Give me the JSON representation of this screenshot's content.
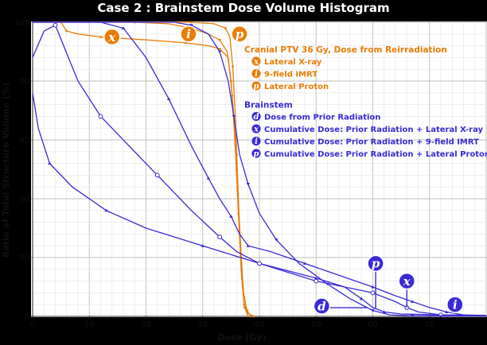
{
  "chart_data": {
    "type": "line",
    "title": "Case 2 : Brainstem Dose Volume Histogram",
    "xlabel": "Dose (Gy)",
    "ylabel": "Ratio of Total Structure Volume (%)",
    "xlim": [
      0,
      80
    ],
    "ylim": [
      0,
      100
    ],
    "xticks": [
      "0",
      "10",
      "20",
      "30",
      "40",
      "50",
      "60",
      "70"
    ],
    "yticks": [
      "0",
      "20",
      "40",
      "60",
      "80",
      "100"
    ],
    "grid": true,
    "legend": {
      "placement": "top-right",
      "groups": [
        {
          "heading": "Cranial PTV 36 Gy, Dose from Reirradiation",
          "color": "#e87d07",
          "items": [
            {
              "badge": "x",
              "label": "Lateral X-ray"
            },
            {
              "badge": "i",
              "label": "9-field IMRT"
            },
            {
              "badge": "p",
              "label": "Lateral Proton"
            }
          ]
        },
        {
          "heading": "Brainstem",
          "color": "#3a2ad6",
          "items": [
            {
              "badge": "d",
              "label": "Dose from Prior Radiation"
            },
            {
              "badge": "x",
              "label": "Cumulative Dose: Prior Radiation + Lateral X-ray"
            },
            {
              "badge": "i",
              "label": "Cumulative Dose: Prior Radiation + 9-field IMRT"
            },
            {
              "badge": "p",
              "label": "Cumulative Dose: Prior Radiation + Lateral Proton"
            }
          ]
        }
      ]
    },
    "series": [
      {
        "group": "ptv",
        "badge": "x",
        "color": "#e87d07",
        "points": [
          [
            5,
            100
          ],
          [
            6,
            97
          ],
          [
            8,
            96
          ],
          [
            12,
            95
          ],
          [
            20,
            94
          ],
          [
            27,
            93
          ],
          [
            31,
            92
          ],
          [
            33,
            91
          ],
          [
            34.5,
            88
          ],
          [
            35.2,
            75
          ],
          [
            35.8,
            55
          ],
          [
            36.3,
            35
          ],
          [
            36.8,
            15
          ],
          [
            37.3,
            4
          ],
          [
            38,
            1
          ],
          [
            39,
            0
          ]
        ]
      },
      {
        "group": "ptv",
        "badge": "i",
        "color": "#e87d07",
        "points": [
          [
            0,
            100
          ],
          [
            18,
            100
          ],
          [
            24,
            99.5
          ],
          [
            28,
            98
          ],
          [
            31,
            96
          ],
          [
            33,
            94
          ],
          [
            34.3,
            90
          ],
          [
            35,
            80
          ],
          [
            35.6,
            65
          ],
          [
            36,
            50
          ],
          [
            36.4,
            35
          ],
          [
            36.8,
            20
          ],
          [
            37.2,
            8
          ],
          [
            37.8,
            2
          ],
          [
            38.5,
            0
          ]
        ]
      },
      {
        "group": "ptv",
        "badge": "p",
        "color": "#e87d07",
        "points": [
          [
            0,
            100
          ],
          [
            28,
            100
          ],
          [
            32,
            99.5
          ],
          [
            34,
            98
          ],
          [
            34.8,
            95
          ],
          [
            35.3,
            85
          ],
          [
            35.7,
            70
          ],
          [
            36,
            55
          ],
          [
            36.3,
            40
          ],
          [
            36.6,
            25
          ],
          [
            37,
            10
          ],
          [
            37.4,
            3
          ],
          [
            38,
            0
          ]
        ]
      },
      {
        "group": "brainstem",
        "badge": "d",
        "color": "#3a2ad6",
        "points": [
          [
            0,
            76
          ],
          [
            1,
            64
          ],
          [
            3,
            52
          ],
          [
            7,
            44
          ],
          [
            13,
            36
          ],
          [
            20,
            30
          ],
          [
            30,
            24
          ],
          [
            40,
            18
          ],
          [
            50,
            13
          ],
          [
            55,
            10
          ],
          [
            58,
            6
          ],
          [
            60,
            3
          ],
          [
            62,
            1.5
          ],
          [
            65,
            0.8
          ],
          [
            72,
            0.5
          ],
          [
            80,
            0.3
          ]
        ]
      },
      {
        "group": "brainstem",
        "badge": "x",
        "color": "#3a2ad6",
        "points": [
          [
            0,
            88
          ],
          [
            2,
            97
          ],
          [
            4,
            99
          ],
          [
            8,
            80
          ],
          [
            12,
            68
          ],
          [
            17,
            58
          ],
          [
            22,
            48
          ],
          [
            28,
            36
          ],
          [
            33,
            27
          ],
          [
            36,
            22
          ],
          [
            40,
            18
          ],
          [
            45,
            15
          ],
          [
            50,
            12
          ],
          [
            55,
            10
          ],
          [
            60,
            8
          ],
          [
            64,
            5
          ],
          [
            66,
            3
          ],
          [
            68,
            1.5
          ],
          [
            72,
            0.5
          ],
          [
            80,
            0.3
          ]
        ]
      },
      {
        "group": "brainstem",
        "badge": "i",
        "color": "#3a2ad6",
        "points": [
          [
            0,
            100
          ],
          [
            12,
            100
          ],
          [
            16,
            98
          ],
          [
            20,
            88
          ],
          [
            24,
            74
          ],
          [
            28,
            58
          ],
          [
            31,
            47
          ],
          [
            33,
            40
          ],
          [
            35,
            34
          ],
          [
            36.5,
            28
          ],
          [
            38,
            24
          ],
          [
            42,
            22
          ],
          [
            48,
            18
          ],
          [
            54,
            14
          ],
          [
            60,
            10
          ],
          [
            64,
            7
          ],
          [
            67,
            5
          ],
          [
            70,
            3
          ],
          [
            73,
            1.5
          ],
          [
            76,
            0.5
          ],
          [
            80,
            0.3
          ]
        ]
      },
      {
        "group": "brainstem",
        "badge": "p",
        "color": "#3a2ad6",
        "points": [
          [
            0,
            100
          ],
          [
            25,
            100
          ],
          [
            28,
            99
          ],
          [
            31,
            96
          ],
          [
            33,
            90
          ],
          [
            34.5,
            80
          ],
          [
            35.5,
            68
          ],
          [
            36.5,
            55
          ],
          [
            38,
            45
          ],
          [
            40,
            35
          ],
          [
            43,
            26
          ],
          [
            47,
            18
          ],
          [
            52,
            11
          ],
          [
            56,
            6
          ],
          [
            60,
            2
          ],
          [
            63,
            0.5
          ],
          [
            67,
            0.2
          ],
          [
            80,
            0.2
          ]
        ]
      }
    ],
    "annotations": [
      {
        "badge": "x",
        "color": "#e87d07",
        "x": 14,
        "y": 95
      },
      {
        "badge": "i",
        "color": "#e87d07",
        "x": 27.5,
        "y": 96
      },
      {
        "badge": "p",
        "color": "#e87d07",
        "x": 36.5,
        "y": 96
      },
      {
        "badge": "d",
        "color": "#3a2ad6",
        "x": 51,
        "y": 3.5,
        "target_x": 59,
        "target_y": 3
      },
      {
        "badge": "p",
        "color": "#3a2ad6",
        "x": 60.5,
        "y": 18,
        "target_x": 60.5,
        "target_y": 2.5
      },
      {
        "badge": "x",
        "color": "#3a2ad6",
        "x": 66,
        "y": 12,
        "target_x": 66,
        "target_y": 3
      },
      {
        "badge": "i",
        "color": "#3a2ad6",
        "x": 74.5,
        "y": 4,
        "target_x": 74.5,
        "target_y": 1.5
      }
    ]
  }
}
